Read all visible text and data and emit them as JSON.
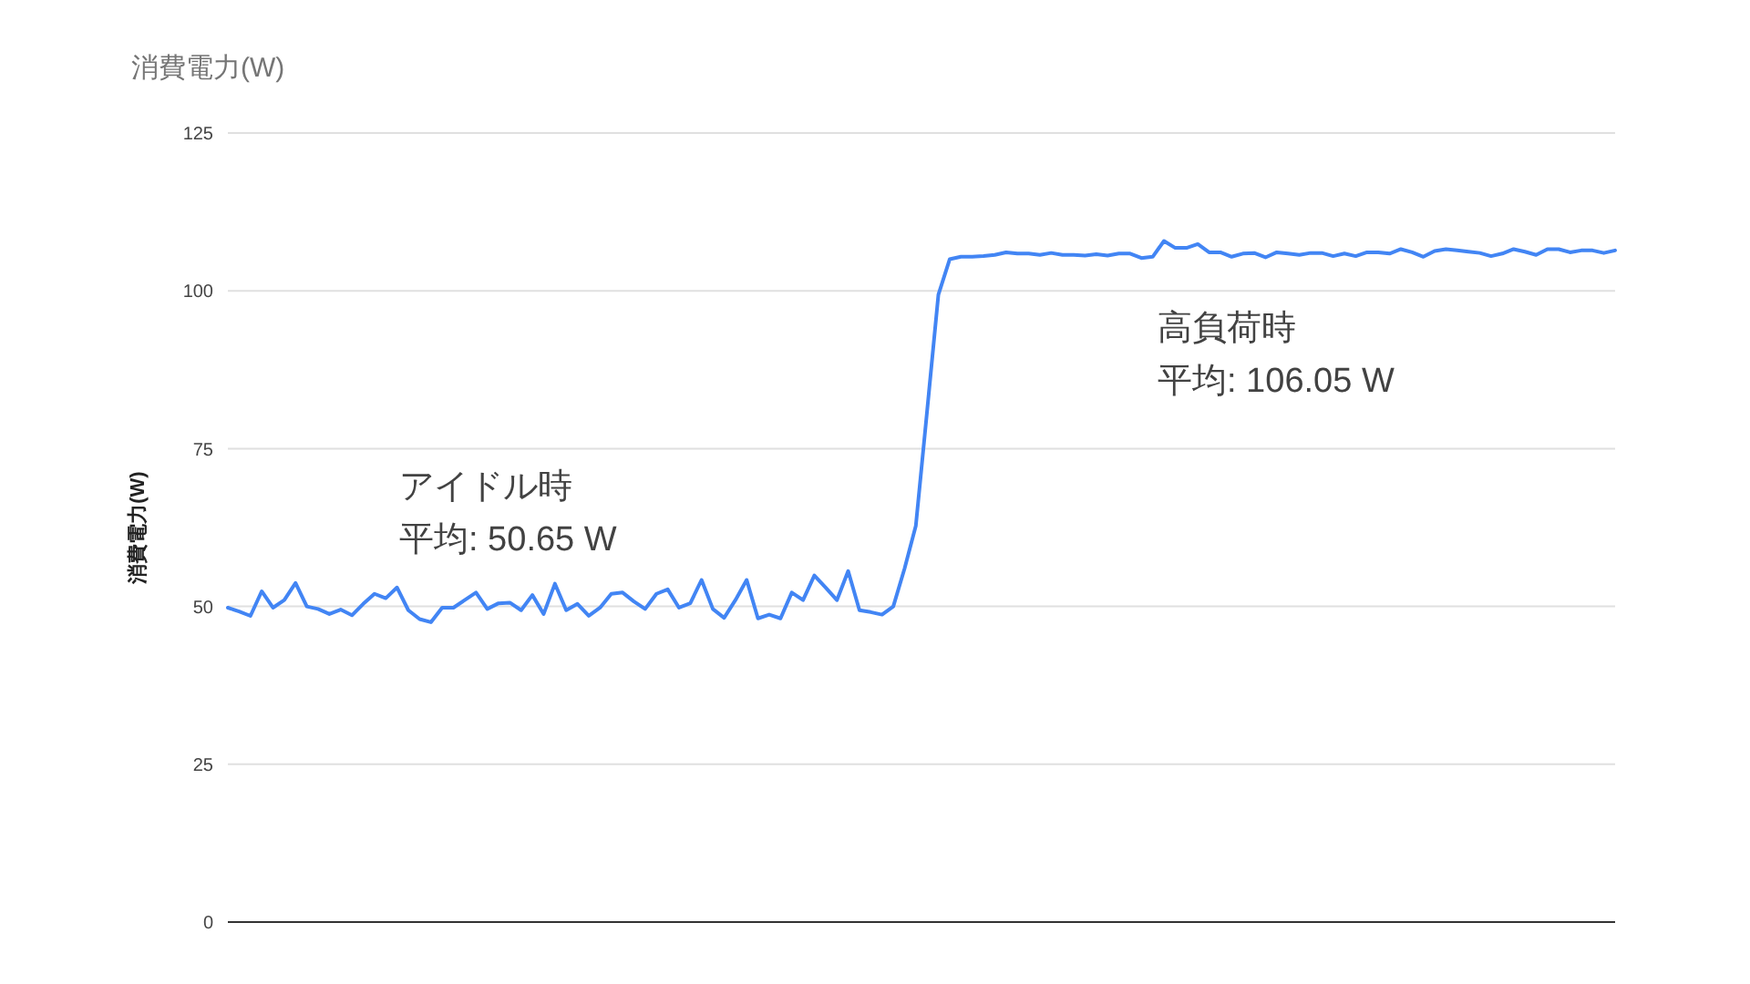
{
  "chart_data": {
    "type": "line",
    "title": "消費電力(W)",
    "ylabel": "消費電力(W)",
    "categories": [
      null,
      null,
      null,
      null,
      null,
      null,
      null,
      null,
      null,
      null,
      null,
      null,
      null,
      null,
      null,
      null,
      null,
      null,
      null,
      null,
      null,
      null,
      null,
      null,
      null,
      null,
      null,
      null,
      null,
      null,
      null,
      null,
      null,
      null,
      null,
      null,
      null,
      null,
      null,
      null,
      null,
      null,
      null,
      null,
      null,
      null,
      null,
      null,
      null,
      null,
      null,
      null,
      null,
      null,
      null,
      null,
      null,
      null,
      null,
      null,
      null,
      null,
      null,
      null,
      null,
      null,
      null,
      null,
      null,
      null,
      null,
      null,
      null,
      null,
      null,
      null,
      null,
      null,
      null,
      null,
      null,
      null,
      null,
      null,
      null,
      null,
      null,
      null,
      null,
      null,
      null,
      null,
      null,
      null,
      null,
      null,
      null,
      null,
      null,
      null,
      null,
      null,
      null,
      null,
      null,
      null,
      null,
      null,
      null,
      null,
      null,
      null,
      null,
      null,
      null,
      null,
      null,
      null,
      null,
      null,
      null,
      null,
      null,
      null
    ],
    "values": [
      49.8,
      49.2,
      48.5,
      52.4,
      49.8,
      51.0,
      53.7,
      50.0,
      49.6,
      48.8,
      49.5,
      48.6,
      50.4,
      52.0,
      51.3,
      53.0,
      49.4,
      48.0,
      47.5,
      49.8,
      49.8,
      51.0,
      52.2,
      49.6,
      50.5,
      50.6,
      49.4,
      51.8,
      48.8,
      53.6,
      49.4,
      50.4,
      48.5,
      49.8,
      52.0,
      52.2,
      50.8,
      49.6,
      52.0,
      52.7,
      49.8,
      50.5,
      54.2,
      49.6,
      48.2,
      51.0,
      54.2,
      48.1,
      48.7,
      48.1,
      52.2,
      51.0,
      54.9,
      53.0,
      51.0,
      55.6,
      49.4,
      49.1,
      48.7,
      50.0,
      56.0,
      62.8,
      81.0,
      99.4,
      105.0,
      105.4,
      105.4,
      105.5,
      105.7,
      106.1,
      105.9,
      105.9,
      105.7,
      106.0,
      105.7,
      105.7,
      105.6,
      105.8,
      105.6,
      105.9,
      105.9,
      105.2,
      105.4,
      107.9,
      106.8,
      106.8,
      107.4,
      106.1,
      106.1,
      105.4,
      105.9,
      106.0,
      105.3,
      106.1,
      105.9,
      105.7,
      106.0,
      106.0,
      105.5,
      105.9,
      105.5,
      106.1,
      106.1,
      105.9,
      106.6,
      106.1,
      105.4,
      106.3,
      106.6,
      106.4,
      106.2,
      106.0,
      105.5,
      105.9,
      106.6,
      106.2,
      105.7,
      106.6,
      106.6,
      106.1,
      106.4,
      106.4,
      106.0,
      106.4
    ],
    "color": "#4285f4",
    "ylim": [
      0,
      125
    ],
    "yticks": [
      0,
      25,
      50,
      75,
      100,
      125
    ],
    "grid": "y",
    "tick_labels": "y",
    "marker": "none",
    "line_style": "solid",
    "annotations": [
      "アイドル時",
      "平均: 50.65 W",
      "高負荷時",
      "平均: 106.05 W"
    ]
  }
}
